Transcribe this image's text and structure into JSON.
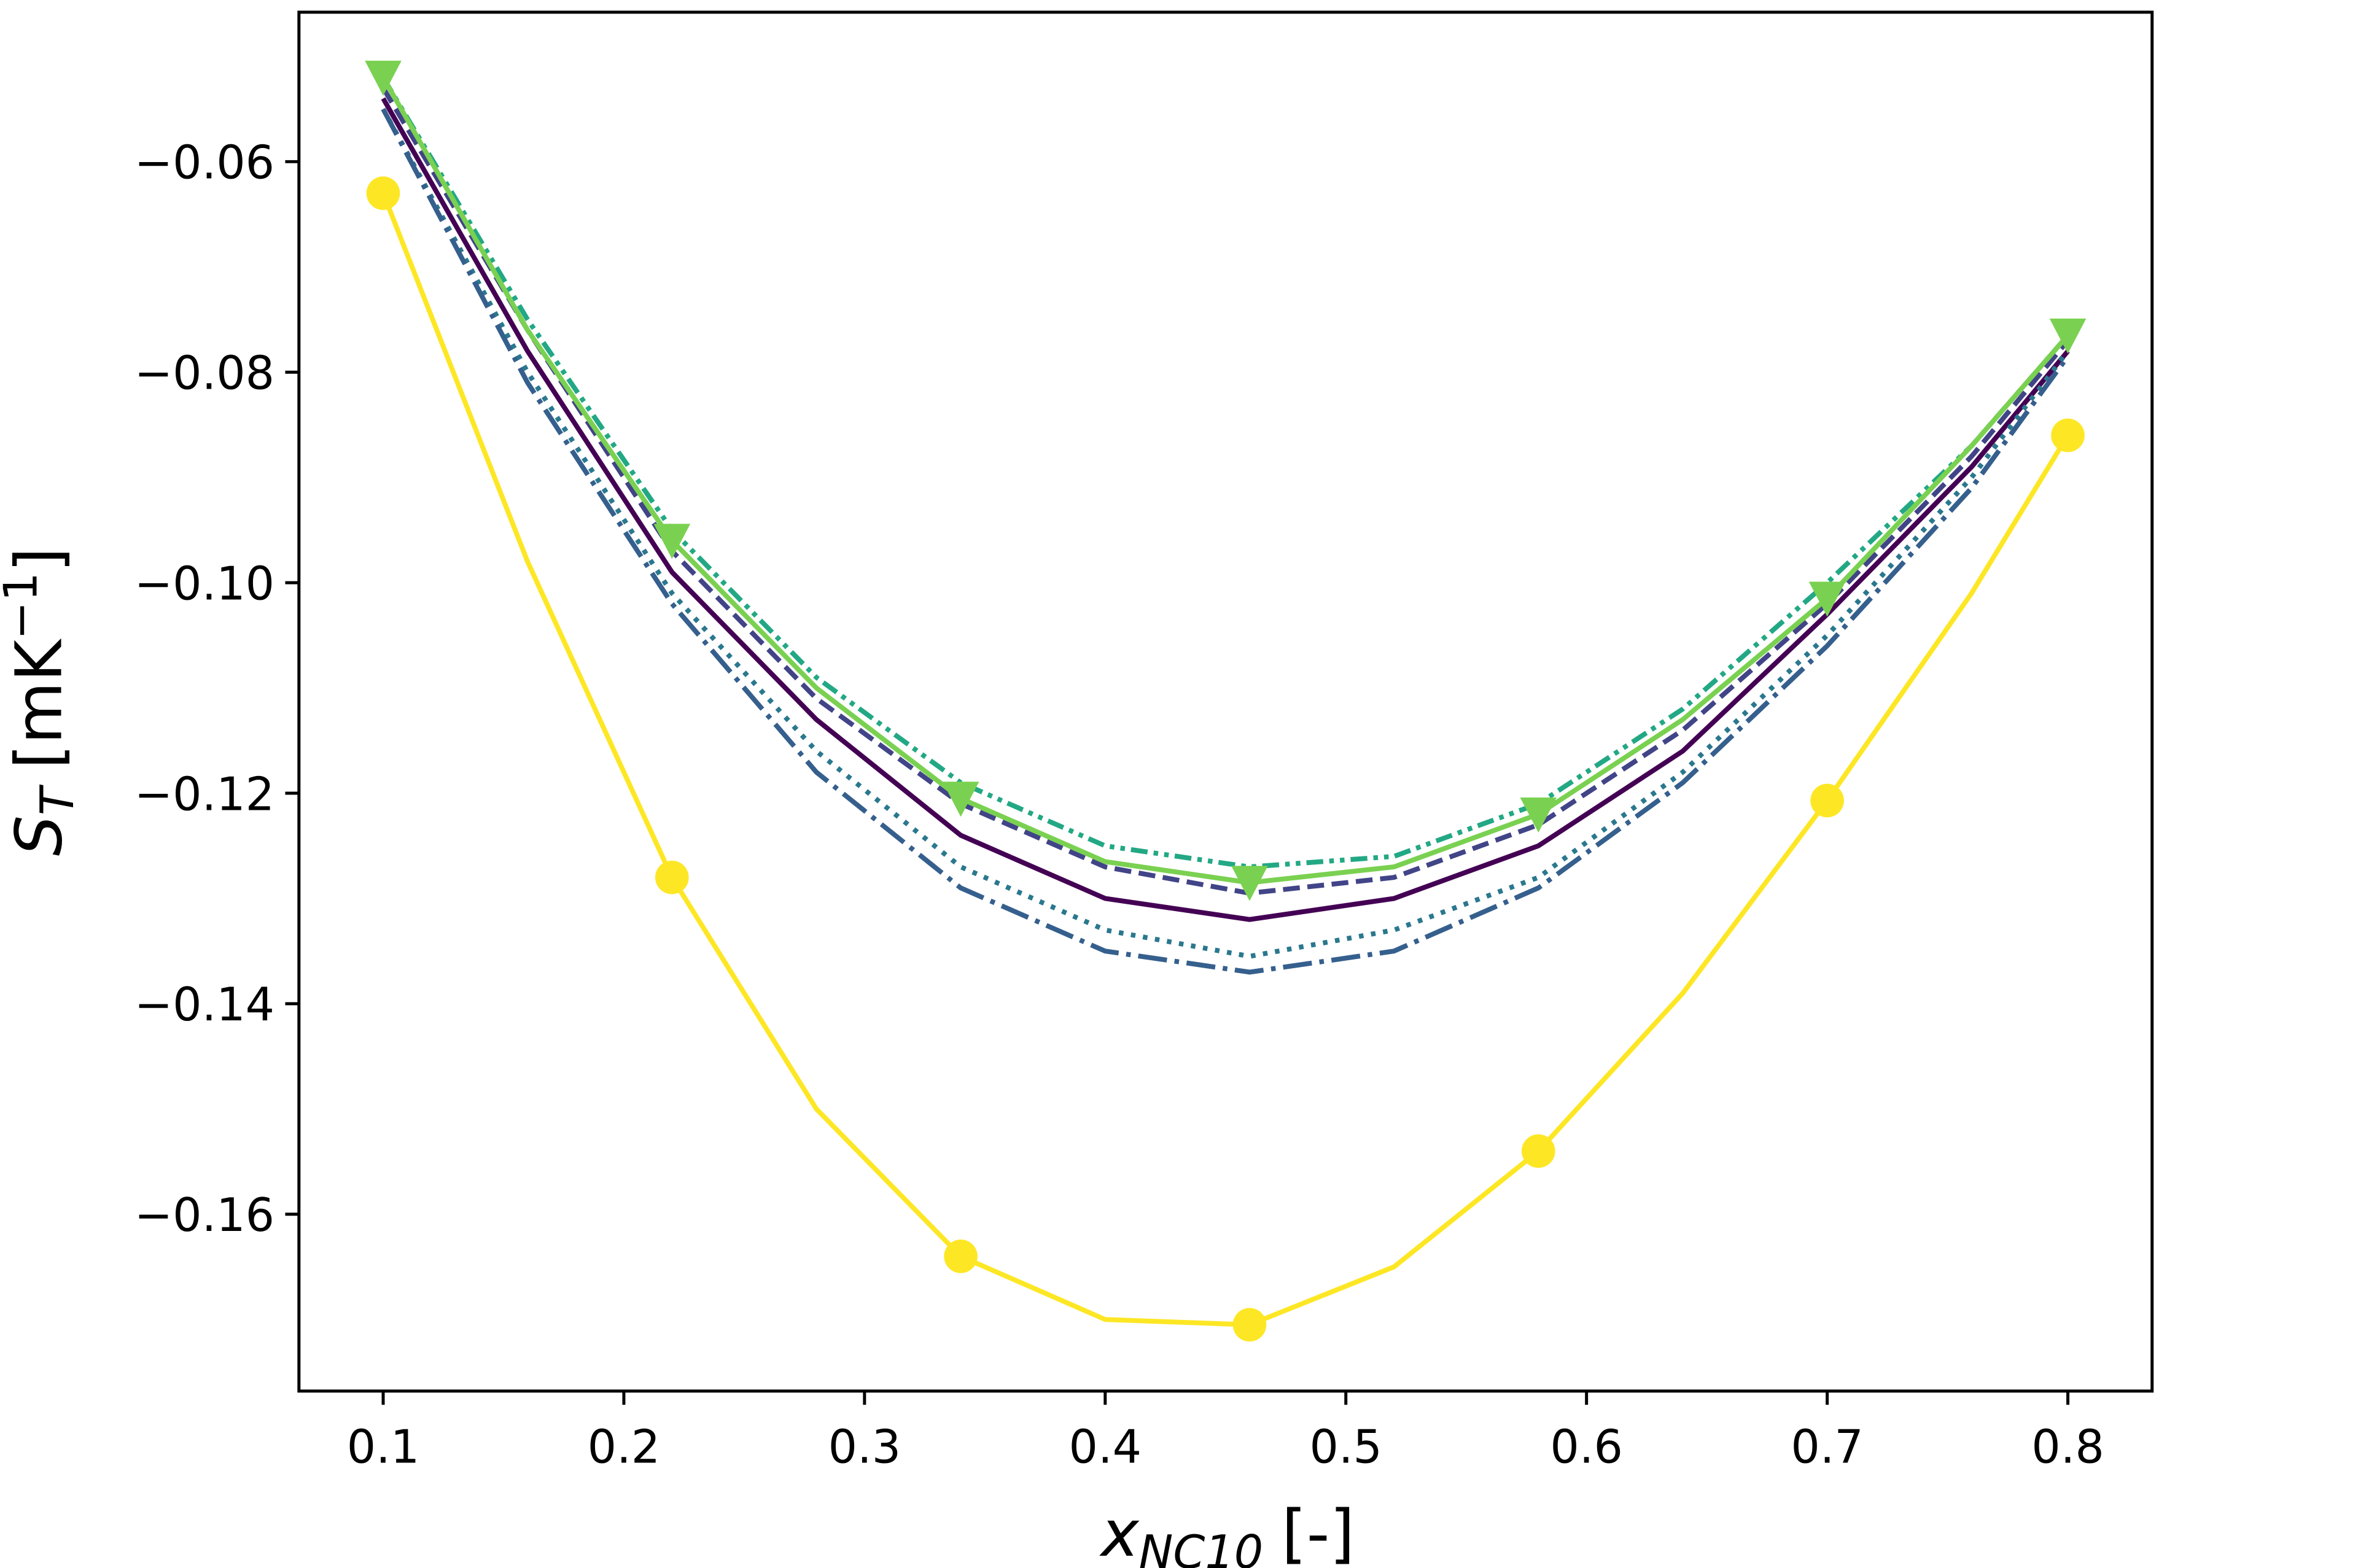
{
  "chart_data": {
    "type": "line",
    "x_label": {
      "symbol": "x",
      "subscript": "NC10",
      "rest": "[-]"
    },
    "y_label": {
      "symbol": "S",
      "subscript": "T",
      "unit": "[mK",
      "exponent": "−1",
      "close": "]"
    },
    "x": [
      0.1,
      0.16,
      0.22,
      0.28,
      0.34,
      0.4,
      0.46,
      0.52,
      0.58,
      0.64,
      0.7,
      0.76,
      0.8
    ],
    "series": [
      {
        "color": "#440154",
        "dash": "solid",
        "values": [
          -0.054,
          -0.078,
          -0.099,
          -0.113,
          -0.124,
          -0.13,
          -0.132,
          -0.13,
          -0.125,
          -0.116,
          -0.103,
          -0.089,
          -0.078
        ]
      },
      {
        "color": "#414487",
        "dash": "dashed",
        "values": [
          -0.053,
          -0.076,
          -0.097,
          -0.111,
          -0.121,
          -0.127,
          -0.1295,
          -0.128,
          -0.123,
          -0.114,
          -0.102,
          -0.088,
          -0.077
        ]
      },
      {
        "color": "#2a788e",
        "dash": "dotted",
        "values": [
          -0.055,
          -0.08,
          -0.101,
          -0.116,
          -0.127,
          -0.133,
          -0.1355,
          -0.133,
          -0.128,
          -0.118,
          -0.105,
          -0.09,
          -0.078
        ]
      },
      {
        "color": "#355f8d",
        "dash": "dashdot",
        "values": [
          -0.055,
          -0.081,
          -0.102,
          -0.118,
          -0.129,
          -0.135,
          -0.137,
          -0.135,
          -0.129,
          -0.119,
          -0.106,
          -0.091,
          -0.0785
        ]
      },
      {
        "color": "#22a884",
        "dash": "dashdotdot",
        "values": [
          -0.052,
          -0.075,
          -0.095,
          -0.109,
          -0.119,
          -0.125,
          -0.127,
          -0.126,
          -0.121,
          -0.112,
          -0.1,
          -0.087,
          -0.0765
        ]
      },
      {
        "color": "#7ad151",
        "dash": "solid",
        "marker": "v",
        "values": [
          -0.052,
          -0.076,
          -0.096,
          -0.11,
          -0.1205,
          -0.1265,
          -0.1285,
          -0.127,
          -0.122,
          -0.113,
          -0.1015,
          -0.087,
          -0.0765
        ]
      },
      {
        "color": "#fde725",
        "dash": "solid",
        "marker": "o",
        "values": [
          -0.063,
          -0.098,
          -0.128,
          -0.15,
          -0.164,
          -0.17,
          -0.1705,
          -0.165,
          -0.154,
          -0.139,
          -0.1207,
          -0.101,
          -0.086
        ]
      }
    ],
    "markevery": 2,
    "xlim": [
      0.065,
      0.835
    ],
    "ylim": [
      -0.1768,
      -0.0458
    ],
    "xticks": [
      0.1,
      0.2,
      0.3,
      0.4,
      0.5,
      0.6,
      0.7,
      0.8
    ],
    "yticks": [
      {
        "value": -0.16,
        "label": "−0.16"
      },
      {
        "value": -0.14,
        "label": "−0.14"
      },
      {
        "value": -0.12,
        "label": "−0.12"
      },
      {
        "value": -0.1,
        "label": "−0.10"
      },
      {
        "value": -0.08,
        "label": "−0.08"
      },
      {
        "value": -0.06,
        "label": "−0.06"
      }
    ]
  }
}
